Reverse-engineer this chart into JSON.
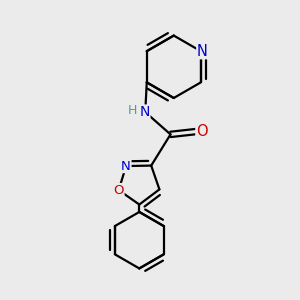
{
  "bg_color": "#ebebeb",
  "bond_color": "#000000",
  "bond_width": 1.6,
  "atom_colors": {
    "N": "#0000cc",
    "O": "#cc0000",
    "H": "#5a9a8a",
    "C": "#000000"
  },
  "font_size": 9.5,
  "fig_size": [
    3.0,
    3.0
  ],
  "dpi": 100
}
